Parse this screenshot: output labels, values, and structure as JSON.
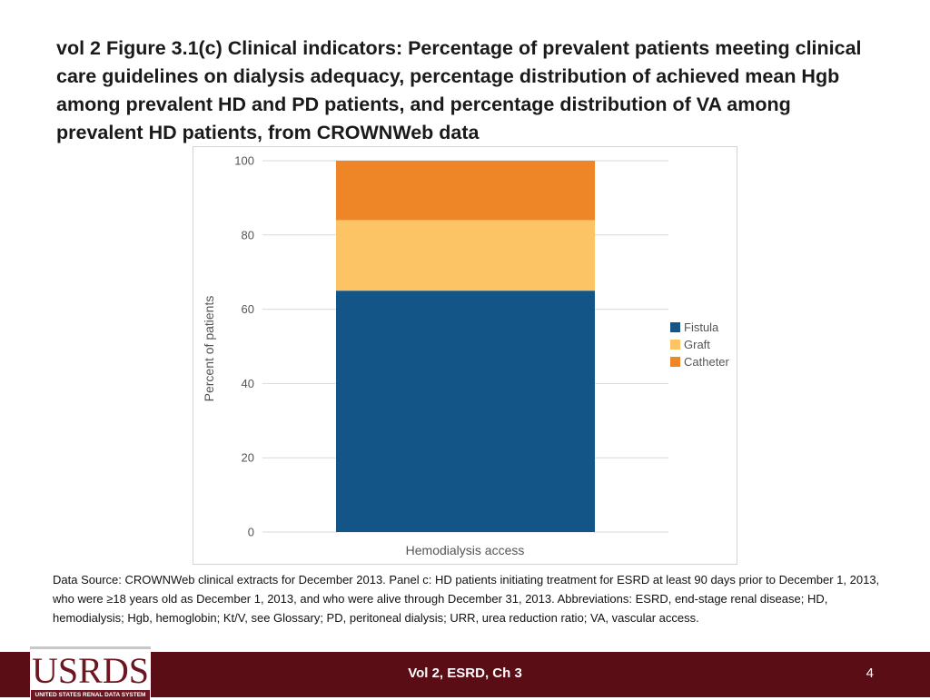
{
  "title": "vol 2  Figure 3.1(c) Clinical indicators: Percentage of prevalent patients meeting clinical care guidelines on dialysis adequacy, percentage distribution of achieved mean Hgb among prevalent HD and PD patients, and percentage distribution of VA among prevalent HD patients, from CROWNWeb data",
  "chart_data": {
    "type": "bar",
    "stacked": true,
    "categories": [
      "Hemodialysis access"
    ],
    "series": [
      {
        "name": "Fistula",
        "values": [
          65
        ],
        "color": "#145587"
      },
      {
        "name": "Graft",
        "values": [
          19
        ],
        "color": "#fdc466"
      },
      {
        "name": "Catheter",
        "values": [
          16
        ],
        "color": "#ee8526"
      }
    ],
    "title": "",
    "xlabel": "Hemodialysis access",
    "ylabel": "Percent of patients",
    "ylim": [
      0,
      100
    ],
    "yticks": [
      "0",
      "20",
      "40",
      "60",
      "80",
      "100"
    ],
    "grid": true,
    "legend_position": "right"
  },
  "footnote": "Data Source: CROWNWeb clinical extracts for December 2013. Panel c: HD patients initiating treatment for ESRD at least 90 days prior to December 1, 2013, who were ≥18 years old as December 1, 2013, and who were alive through December 31, 2013. Abbreviations: ESRD, end-stage renal disease; HD, hemodialysis; Hgb, hemoglobin; Kt/V, see Glossary; PD, peritoneal dialysis; URR, urea reduction ratio; VA, vascular access.",
  "footer": {
    "center_text": "Vol 2, ESRD, Ch 3",
    "page_number": "4",
    "footer_color": "#5a0d14"
  },
  "logo": {
    "wordmark": "USRDS",
    "subtitle": "UNITED STATES RENAL DATA SYSTEM"
  }
}
